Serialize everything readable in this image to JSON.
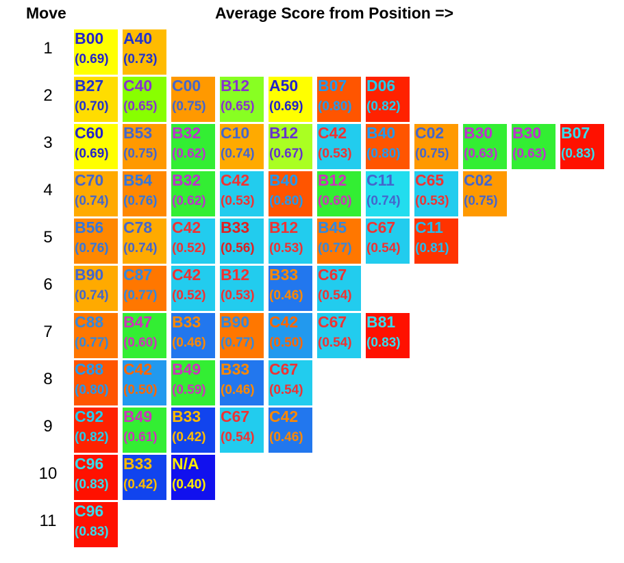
{
  "headers": {
    "move": "Move",
    "score": "Average Score from Position =>"
  },
  "chart_data": {
    "type": "table",
    "title": "Average Score from Position =>",
    "row_label": "Move",
    "rows": [
      {
        "move": "1",
        "cells": [
          {
            "code": "B00",
            "score": "(0.69)",
            "bg": "#ffff00",
            "fg": "#2222cc"
          },
          {
            "code": "A40",
            "score": "(0.73)",
            "bg": "#ffbb00",
            "fg": "#2233cc"
          }
        ]
      },
      {
        "move": "2",
        "cells": [
          {
            "code": "B27",
            "score": "(0.70)",
            "bg": "#ffdd00",
            "fg": "#2233cc"
          },
          {
            "code": "C40",
            "score": "(0.65)",
            "bg": "#88ff00",
            "fg": "#8833cc"
          },
          {
            "code": "C00",
            "score": "(0.75)",
            "bg": "#ff9900",
            "fg": "#4466cc"
          },
          {
            "code": "B12",
            "score": "(0.65)",
            "bg": "#88ff22",
            "fg": "#8833cc"
          },
          {
            "code": "A50",
            "score": "(0.69)",
            "bg": "#ffff00",
            "fg": "#2222cc"
          },
          {
            "code": "B07",
            "score": "(0.80)",
            "bg": "#ff5500",
            "fg": "#2299ee"
          },
          {
            "code": "D06",
            "score": "(0.82)",
            "bg": "#ff2200",
            "fg": "#22ccee"
          }
        ]
      },
      {
        "move": "3",
        "cells": [
          {
            "code": "C60",
            "score": "(0.69)",
            "bg": "#ffff00",
            "fg": "#2222cc"
          },
          {
            "code": "B53",
            "score": "(0.75)",
            "bg": "#ff9900",
            "fg": "#4466cc"
          },
          {
            "code": "B32",
            "score": "(0.62)",
            "bg": "#33ee33",
            "fg": "#bb33cc"
          },
          {
            "code": "C10",
            "score": "(0.74)",
            "bg": "#ffaa00",
            "fg": "#4466cc"
          },
          {
            "code": "B12",
            "score": "(0.67)",
            "bg": "#aaff22",
            "fg": "#6633cc"
          },
          {
            "code": "C42",
            "score": "(0.53)",
            "bg": "#22ccee",
            "fg": "#ee3333"
          },
          {
            "code": "B40",
            "score": "(0.80)",
            "bg": "#ff5500",
            "fg": "#2299ee"
          },
          {
            "code": "C02",
            "score": "(0.75)",
            "bg": "#ff9900",
            "fg": "#4466cc"
          },
          {
            "code": "B30",
            "score": "(0.63)",
            "bg": "#33ee33",
            "fg": "#bb33cc"
          },
          {
            "code": "B30",
            "score": "(0.63)",
            "bg": "#33ee33",
            "fg": "#bb33cc"
          },
          {
            "code": "B07",
            "score": "(0.83)",
            "bg": "#ff1100",
            "fg": "#33ddee"
          }
        ]
      },
      {
        "move": "4",
        "cells": [
          {
            "code": "C70",
            "score": "(0.74)",
            "bg": "#ffaa00",
            "fg": "#4466cc"
          },
          {
            "code": "B54",
            "score": "(0.76)",
            "bg": "#ff8800",
            "fg": "#3377dd"
          },
          {
            "code": "B32",
            "score": "(0.62)",
            "bg": "#33ee33",
            "fg": "#bb33cc"
          },
          {
            "code": "C42",
            "score": "(0.53)",
            "bg": "#22ccee",
            "fg": "#ee3333"
          },
          {
            "code": "B40",
            "score": "(0.80)",
            "bg": "#ff5500",
            "fg": "#2299ee"
          },
          {
            "code": "B12",
            "score": "(0.60)",
            "bg": "#33ee33",
            "fg": "#cc33bb"
          },
          {
            "code": "C11",
            "score": "(0.74)",
            "bg": "#22ddee",
            "fg": "#4466cc"
          },
          {
            "code": "C65",
            "score": "(0.53)",
            "bg": "#22ccee",
            "fg": "#ee3333"
          },
          {
            "code": "C02",
            "score": "(0.75)",
            "bg": "#ff9900",
            "fg": "#4466cc"
          }
        ]
      },
      {
        "move": "5",
        "cells": [
          {
            "code": "B56",
            "score": "(0.76)",
            "bg": "#ff8800",
            "fg": "#3377dd"
          },
          {
            "code": "C78",
            "score": "(0.74)",
            "bg": "#ffaa00",
            "fg": "#4466cc"
          },
          {
            "code": "C42",
            "score": "(0.52)",
            "bg": "#22ccee",
            "fg": "#ee3333"
          },
          {
            "code": "B33",
            "score": "(0.56)",
            "bg": "#22ccee",
            "fg": "#dd2222"
          },
          {
            "code": "B12",
            "score": "(0.53)",
            "bg": "#22ccee",
            "fg": "#ee3333"
          },
          {
            "code": "B45",
            "score": "(0.77)",
            "bg": "#ff7700",
            "fg": "#3388dd"
          },
          {
            "code": "C67",
            "score": "(0.54)",
            "bg": "#22ccee",
            "fg": "#ee3333"
          },
          {
            "code": "C11",
            "score": "(0.81)",
            "bg": "#ff3300",
            "fg": "#22bbee"
          }
        ]
      },
      {
        "move": "6",
        "cells": [
          {
            "code": "B90",
            "score": "(0.74)",
            "bg": "#ffaa00",
            "fg": "#4466cc"
          },
          {
            "code": "C87",
            "score": "(0.77)",
            "bg": "#ff7700",
            "fg": "#3388dd"
          },
          {
            "code": "C42",
            "score": "(0.52)",
            "bg": "#22ccee",
            "fg": "#ee3333"
          },
          {
            "code": "B12",
            "score": "(0.53)",
            "bg": "#22ccee",
            "fg": "#ee3333"
          },
          {
            "code": "B33",
            "score": "(0.46)",
            "bg": "#2277ee",
            "fg": "#ff8800"
          },
          {
            "code": "C67",
            "score": "(0.54)",
            "bg": "#22ccee",
            "fg": "#ee3333"
          }
        ]
      },
      {
        "move": "7",
        "cells": [
          {
            "code": "C88",
            "score": "(0.77)",
            "bg": "#ff7700",
            "fg": "#3388dd"
          },
          {
            "code": "B47",
            "score": "(0.60)",
            "bg": "#33ee33",
            "fg": "#cc33bb"
          },
          {
            "code": "B33",
            "score": "(0.46)",
            "bg": "#2277ee",
            "fg": "#ff8800"
          },
          {
            "code": "B90",
            "score": "(0.77)",
            "bg": "#ff7700",
            "fg": "#3388dd"
          },
          {
            "code": "C42",
            "score": "(0.50)",
            "bg": "#2299ee",
            "fg": "#ff6600"
          },
          {
            "code": "C67",
            "score": "(0.54)",
            "bg": "#22ccee",
            "fg": "#ee3333"
          },
          {
            "code": "B81",
            "score": "(0.83)",
            "bg": "#ff1100",
            "fg": "#33ddee"
          }
        ]
      },
      {
        "move": "8",
        "cells": [
          {
            "code": "C88",
            "score": "(0.80)",
            "bg": "#ff5500",
            "fg": "#2299ee"
          },
          {
            "code": "C42",
            "score": "(0.50)",
            "bg": "#2299ee",
            "fg": "#ff6600"
          },
          {
            "code": "B49",
            "score": "(0.59)",
            "bg": "#33ee33",
            "fg": "#cc33bb"
          },
          {
            "code": "B33",
            "score": "(0.46)",
            "bg": "#2277ee",
            "fg": "#ff8800"
          },
          {
            "code": "C67",
            "score": "(0.54)",
            "bg": "#22ccee",
            "fg": "#ee3333"
          }
        ]
      },
      {
        "move": "9",
        "cells": [
          {
            "code": "C92",
            "score": "(0.82)",
            "bg": "#ff2200",
            "fg": "#22ccee"
          },
          {
            "code": "B49",
            "score": "(0.61)",
            "bg": "#33ee33",
            "fg": "#cc33bb"
          },
          {
            "code": "B33",
            "score": "(0.42)",
            "bg": "#1144ee",
            "fg": "#ffbb00"
          },
          {
            "code": "C67",
            "score": "(0.54)",
            "bg": "#22ccee",
            "fg": "#ee3333"
          },
          {
            "code": "C42",
            "score": "(0.46)",
            "bg": "#2277ee",
            "fg": "#ff8800"
          }
        ]
      },
      {
        "move": "10",
        "cells": [
          {
            "code": "C96",
            "score": "(0.83)",
            "bg": "#ff1100",
            "fg": "#33ddee"
          },
          {
            "code": "B33",
            "score": "(0.42)",
            "bg": "#1144ee",
            "fg": "#ffbb00"
          },
          {
            "code": "N/A",
            "score": "(0.40)",
            "bg": "#1111ee",
            "fg": "#ffee00"
          }
        ]
      },
      {
        "move": "11",
        "cells": [
          {
            "code": "C96",
            "score": "(0.83)",
            "bg": "#ff1100",
            "fg": "#33ddee"
          }
        ]
      }
    ]
  }
}
